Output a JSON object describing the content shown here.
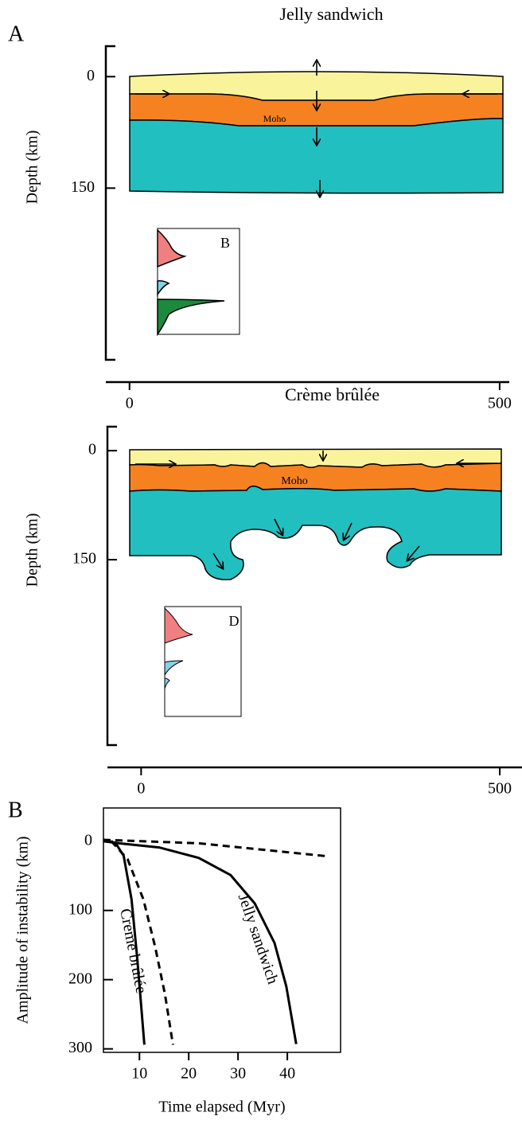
{
  "chart_data": [
    {
      "type": "cross-section",
      "panel_label": "A",
      "title": "Jelly sandwich",
      "ylabel": "Depth (km)",
      "annotation": "Moho",
      "inset_label": "B",
      "xlim": [
        -32,
        513
      ],
      "xticks": [
        0,
        500
      ],
      "ylim": [
        -41,
        381
      ],
      "yticks": [
        0,
        150
      ],
      "y_inverted": true
    },
    {
      "type": "cross-section",
      "title": "Crème brûlée",
      "ylabel": "Depth (km)",
      "annotation": "Moho",
      "inset_label": "D",
      "xlim": [
        -47,
        531
      ],
      "xticks": [
        0,
        500
      ],
      "ylim": [
        -33,
        405
      ],
      "yticks": [
        0,
        150
      ],
      "y_inverted": true
    },
    {
      "type": "line",
      "panel_label": "B",
      "xlabel": "Time elapsed (Myr)",
      "ylabel": "Amplitude of instability (km)",
      "xlim": [
        2.7,
        50.8
      ],
      "xticks": [
        10,
        20,
        30,
        40
      ],
      "ylim": [
        -48,
        305
      ],
      "yticks": [
        0,
        100,
        200,
        300
      ],
      "y_inverted": true,
      "series": [
        {
          "name": "Jelly sandwich",
          "color": "#000000",
          "dash": false,
          "x": [
            2.7,
            5.9,
            14,
            22,
            28.5,
            33.4,
            37.4,
            39.8,
            41.8
          ],
          "values": [
            0,
            3,
            9,
            24,
            49,
            90,
            147,
            210,
            293
          ]
        },
        {
          "name": "Crème brûlée",
          "color": "#000000",
          "dash": false,
          "x": [
            2.7,
            5.1,
            6.8,
            8.4,
            9.5,
            10.3,
            11
          ],
          "values": [
            0,
            2,
            21,
            84,
            165,
            233,
            294
          ]
        },
        {
          "color": "#000000",
          "dash": true,
          "x": [
            4.3,
            7.6,
            10.8,
            13.2,
            15.2,
            16.8
          ],
          "values": [
            0,
            26,
            84,
            153,
            222,
            294
          ]
        },
        {
          "color": "#000000",
          "dash": true,
          "x": [
            2.7,
            22,
            48.5
          ],
          "values": [
            -2,
            3,
            22
          ]
        }
      ]
    }
  ]
}
